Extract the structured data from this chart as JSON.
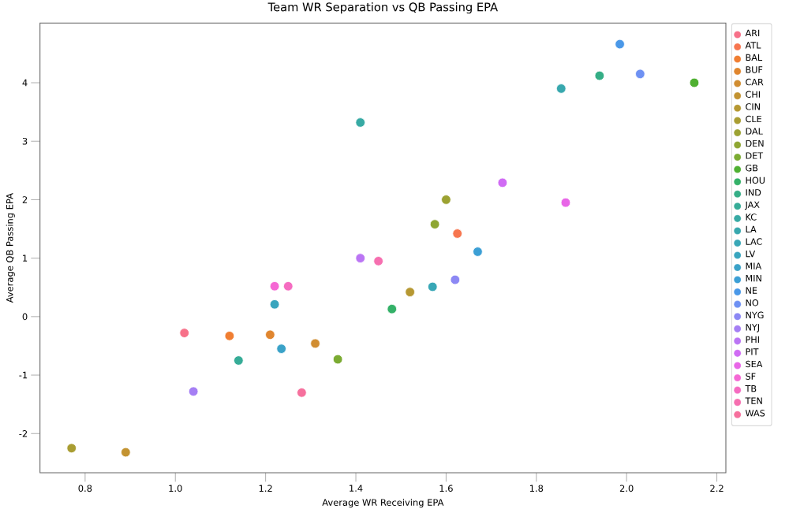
{
  "chart_data": {
    "type": "scatter",
    "title": "Team WR Separation vs QB Passing EPA",
    "xlabel": "Average WR Receiving EPA",
    "ylabel": "Average QB Passing EPA",
    "xlim": [
      0.7,
      2.22
    ],
    "ylim": [
      -2.67,
      5.02
    ],
    "xticks": [
      0.8,
      {
        "value": 1.0,
        "label": "1.0"
      },
      1.2,
      1.4,
      1.6,
      1.8,
      {
        "value": 2.0,
        "label": "2.0"
      },
      2.2
    ],
    "yticks": [
      -2,
      -1,
      0,
      1,
      2,
      3,
      4
    ],
    "legend": "right",
    "marker": "circle",
    "series": [
      {
        "name": "ARI",
        "color": "#f77189",
        "x": [
          1.02
        ],
        "values": [
          -0.28
        ]
      },
      {
        "name": "ATL",
        "color": "#f7764f",
        "x": [
          1.625
        ],
        "values": [
          1.42
        ]
      },
      {
        "name": "BAL",
        "color": "#f07e32",
        "x": [
          1.12
        ],
        "values": [
          -0.33
        ]
      },
      {
        "name": "BUF",
        "color": "#e0862f",
        "x": [
          1.21
        ],
        "values": [
          -0.31
        ]
      },
      {
        "name": "CAR",
        "color": "#d18d31",
        "x": [
          1.31
        ],
        "values": [
          -0.46
        ]
      },
      {
        "name": "CHI",
        "color": "#c39331",
        "x": [
          0.89
        ],
        "values": [
          -2.32
        ]
      },
      {
        "name": "CIN",
        "color": "#b69832",
        "x": [
          1.52
        ],
        "values": [
          0.42
        ]
      },
      {
        "name": "CLE",
        "color": "#a99d32",
        "x": [
          0.77
        ],
        "values": [
          -2.25
        ]
      },
      {
        "name": "DAL",
        "color": "#9ca232",
        "x": [
          1.6
        ],
        "values": [
          2.0
        ]
      },
      {
        "name": "DEN",
        "color": "#8ea632",
        "x": [
          1.575
        ],
        "values": [
          1.58
        ]
      },
      {
        "name": "DET",
        "color": "#7bab32",
        "x": [
          1.36
        ],
        "values": [
          -0.73
        ]
      },
      {
        "name": "GB",
        "color": "#4fb031",
        "x": [
          2.15
        ],
        "values": [
          4.0
        ]
      },
      {
        "name": "HOU",
        "color": "#34b168",
        "x": [
          1.48
        ],
        "values": [
          0.13
        ]
      },
      {
        "name": "IND",
        "color": "#35ae86",
        "x": [
          1.94
        ],
        "values": [
          4.12
        ]
      },
      {
        "name": "JAX",
        "color": "#36ac97",
        "x": [
          1.14
        ],
        "values": [
          -0.75
        ]
      },
      {
        "name": "KC",
        "color": "#37aaa4",
        "x": [
          1.41
        ],
        "values": [
          3.32
        ]
      },
      {
        "name": "LA",
        "color": "#38a8ae",
        "x": [
          1.855
        ],
        "values": [
          3.9
        ]
      },
      {
        "name": "LAC",
        "color": "#38a7b6",
        "x": [
          1.57
        ],
        "values": [
          0.51
        ]
      },
      {
        "name": "LV",
        "color": "#39a5be",
        "x": [
          1.22
        ],
        "values": [
          0.21
        ]
      },
      {
        "name": "MIA",
        "color": "#3aa2c8",
        "x": [
          1.235
        ],
        "values": [
          -0.55
        ]
      },
      {
        "name": "MIN",
        "color": "#3c9fd5",
        "x": [
          1.67
        ],
        "values": [
          1.11
        ]
      },
      {
        "name": "NE",
        "color": "#4a98e8",
        "x": [
          1.985
        ],
        "values": [
          4.66
        ]
      },
      {
        "name": "NO",
        "color": "#6e91f3",
        "x": [
          2.03
        ],
        "values": [
          4.15
        ]
      },
      {
        "name": "NYG",
        "color": "#8c88f4",
        "x": [
          1.62
        ],
        "values": [
          0.63
        ]
      },
      {
        "name": "NYJ",
        "color": "#a57ff4",
        "x": [
          1.04
        ],
        "values": [
          -1.28
        ]
      },
      {
        "name": "PHI",
        "color": "#bb75f4",
        "x": [
          1.41
        ],
        "values": [
          1.0
        ]
      },
      {
        "name": "PIT",
        "color": "#d06bf4",
        "x": [
          1.725
        ],
        "values": [
          2.29
        ]
      },
      {
        "name": "SEA",
        "color": "#e866e7",
        "x": [
          1.865
        ],
        "values": [
          1.95
        ]
      },
      {
        "name": "SF",
        "color": "#f568d4",
        "x": [
          1.22
        ],
        "values": [
          0.52
        ]
      },
      {
        "name": "TB",
        "color": "#f56cc1",
        "x": [
          1.25
        ],
        "values": [
          0.52
        ]
      },
      {
        "name": "TEN",
        "color": "#f66fb0",
        "x": [
          1.45
        ],
        "values": [
          0.95
        ]
      },
      {
        "name": "WAS",
        "color": "#f6709d",
        "x": [
          1.28
        ],
        "values": [
          -1.3
        ]
      }
    ]
  }
}
